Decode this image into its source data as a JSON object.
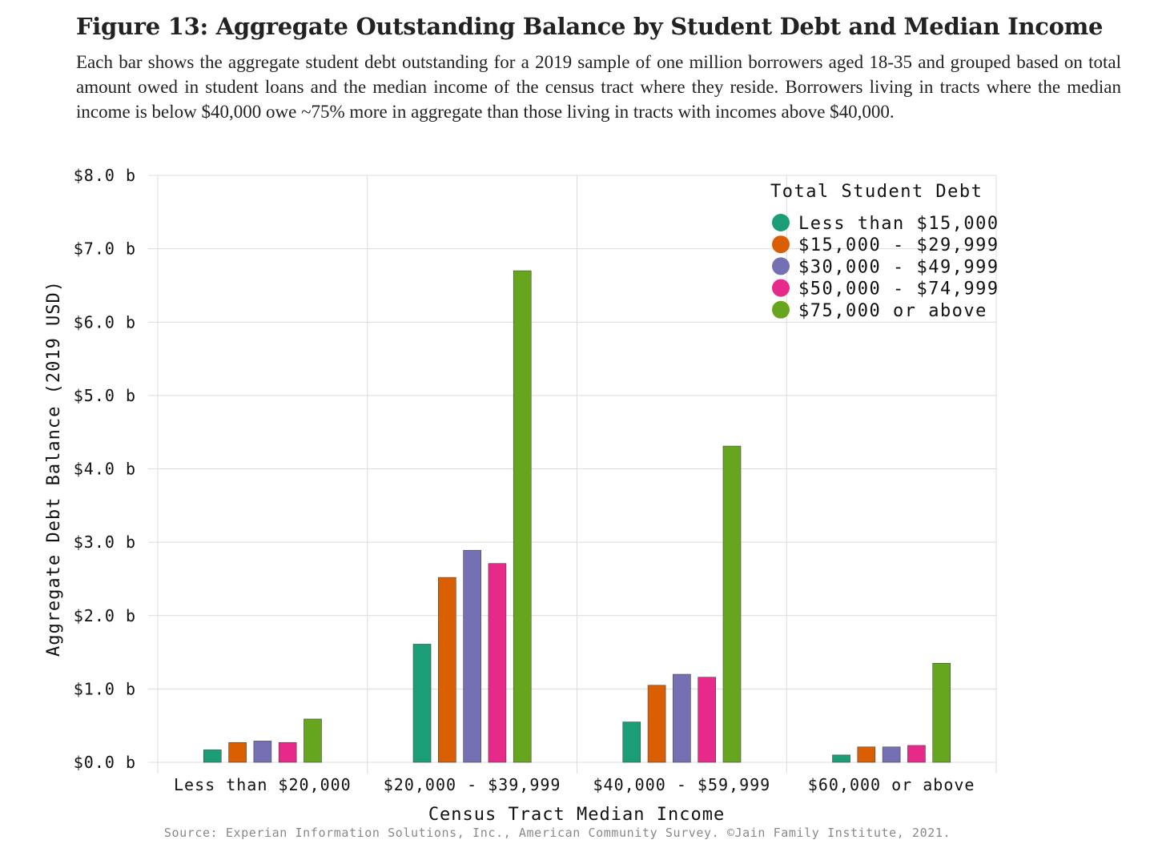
{
  "header": {
    "title": "Figure 13: Aggregate Outstanding Balance by Student Debt and Median Income",
    "subtitle": "Each bar shows the aggregate student debt outstanding for a 2019 sample of one million borrowers aged 18-35 and grouped based on total amount owed in student loans and the median income of the census tract where they reside. Borrowers living in tracts where the median income is below $40,000 owe ~75% more in aggregate than those living in tracts with incomes above $40,000."
  },
  "chart_data": {
    "type": "bar",
    "title": "",
    "xlabel": "Census Tract Median Income",
    "ylabel": "Aggregate Debt Balance (2019 USD)",
    "ylim": [
      0,
      8
    ],
    "yticks": [
      0,
      1,
      2,
      3,
      4,
      5,
      6,
      7,
      8
    ],
    "ytick_labels": [
      "$0.0 b",
      "$1.0 b",
      "$2.0 b",
      "$3.0 b",
      "$4.0 b",
      "$5.0 b",
      "$6.0 b",
      "$7.0 b",
      "$8.0 b"
    ],
    "grid": true,
    "legend_title": "Total Student Debt",
    "legend_position": "top-right",
    "categories": [
      "Less than $20,000",
      "$20,000 - $39,999",
      "$40,000 - $59,999",
      "$60,000 or above"
    ],
    "series": [
      {
        "name": "Less than $15,000",
        "color": "#1b9e77",
        "values": [
          0.17,
          1.61,
          0.55,
          0.1
        ]
      },
      {
        "name": "$15,000 - $29,999",
        "color": "#d95f02",
        "values": [
          0.27,
          2.52,
          1.05,
          0.21
        ]
      },
      {
        "name": "$30,000 - $49,999",
        "color": "#7570b3",
        "values": [
          0.29,
          2.89,
          1.2,
          0.21
        ]
      },
      {
        "name": "$50,000 - $74,999",
        "color": "#e7298a",
        "values": [
          0.27,
          2.71,
          1.16,
          0.23
        ]
      },
      {
        "name": "$75,000 or above",
        "color": "#66a61e",
        "values": [
          0.59,
          6.7,
          4.31,
          1.35
        ]
      }
    ],
    "source": "Source: Experian Information Solutions, Inc., American Community Survey. ©Jain Family Institute, 2021."
  }
}
